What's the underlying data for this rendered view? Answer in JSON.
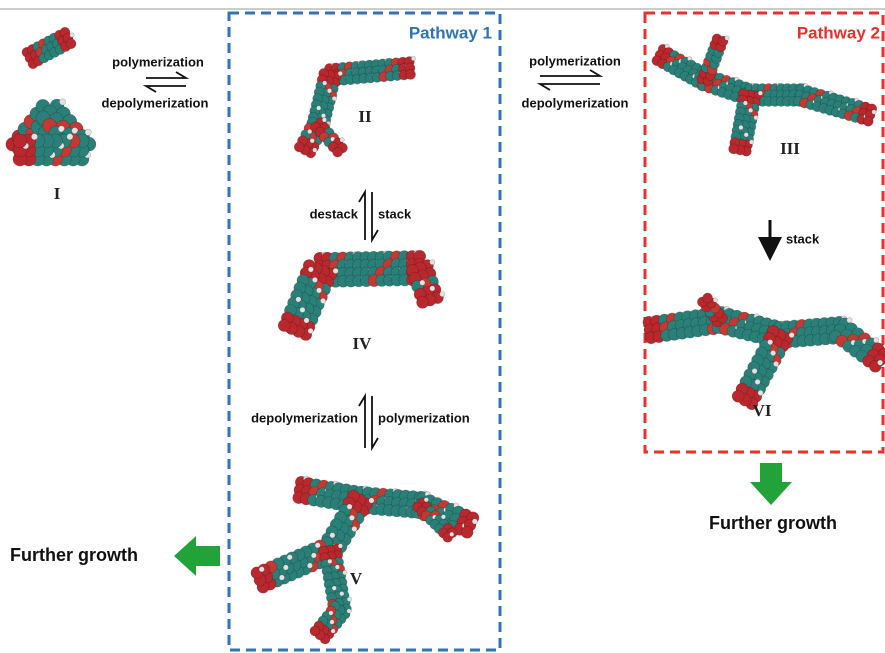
{
  "pathways": [
    {
      "title": "Pathway 1"
    },
    {
      "title": "Pathway 2"
    }
  ],
  "structures": [
    "I",
    "II",
    "III",
    "IV",
    "V",
    "VI"
  ],
  "steps": [
    {
      "labels": [
        "polymerization",
        "depolymerization"
      ]
    },
    {
      "labels": [
        "polymerization",
        "depolymerization"
      ]
    },
    {
      "labels": [
        "destack",
        "stack"
      ]
    },
    {
      "labels": [
        "depolymerization",
        "polymerization"
      ]
    },
    {
      "labels": [
        "stack"
      ]
    }
  ],
  "outcomes": [
    "Further growth",
    "Further growth"
  ]
}
